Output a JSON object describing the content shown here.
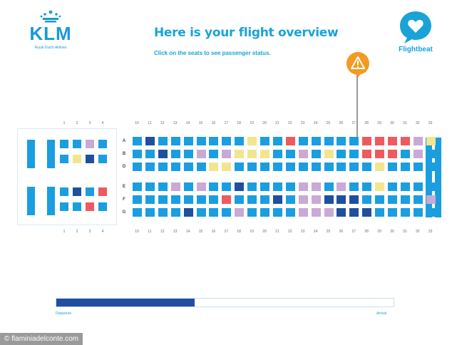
{
  "header": {
    "logo_text": "KLM",
    "logo_tagline": "Royal Dutch Airlines",
    "title": "Here is your flight overview",
    "subtitle": "Click on the seats to see passenger status.",
    "app_name": "Flightbeat"
  },
  "colors": {
    "seat_default": "#1a9ee0",
    "seat_dark": "#1f4fa0",
    "seat_pink": "#c9a9d6",
    "seat_yellow": "#f2e58f",
    "seat_red": "#ef5a5f",
    "alert": "#f29a22",
    "brand": "#1aa3d8"
  },
  "front_cabin": {
    "top_col_numbers": [
      "1",
      "2",
      "3",
      "4"
    ],
    "bottom_col_numbers": [
      "1",
      "2",
      "3",
      "4"
    ],
    "rows": [
      [
        "B",
        "B",
        "P",
        "B"
      ],
      [
        "B",
        "Y",
        "D",
        "B"
      ],
      [
        "B",
        "D",
        "B",
        "R"
      ],
      [
        "B",
        "B",
        "R",
        "B"
      ]
    ]
  },
  "main_cabin": {
    "top_col_numbers": [
      "10",
      "11",
      "12",
      "13",
      "14",
      "15",
      "16",
      "17",
      "18",
      "19",
      "20",
      "21",
      "22",
      "23",
      "24",
      "25",
      "26",
      "27",
      "28",
      "29",
      "30",
      "31",
      "32",
      "33"
    ],
    "bottom_col_numbers": [
      "10",
      "11",
      "12",
      "13",
      "14",
      "15",
      "16",
      "17",
      "18",
      "19",
      "20",
      "21",
      "22",
      "23",
      "24",
      "25",
      "26",
      "27",
      "28",
      "29",
      "30",
      "31",
      "32",
      "33"
    ],
    "row_letters": [
      "A",
      "B",
      "D",
      "E",
      "F",
      "G"
    ],
    "rows": [
      [
        "B",
        "D",
        "B",
        "B",
        "B",
        "B",
        "B",
        "B",
        "B",
        "Y",
        "B",
        "B",
        "R",
        "B",
        "B",
        "B",
        "B",
        "B",
        "R",
        "R",
        "R",
        "R",
        "P",
        "Y"
      ],
      [
        "B",
        "B",
        "D",
        "B",
        "B",
        "P",
        "B",
        "P",
        "Y",
        "Y",
        "Y",
        "B",
        "B",
        "P",
        "B",
        "Y",
        "B",
        "B",
        "R",
        "R",
        "R",
        "B",
        "P",
        "B"
      ],
      [
        "B",
        "B",
        "B",
        "B",
        "B",
        "B",
        "Y",
        "Y",
        "B",
        "B",
        "B",
        "B",
        "B",
        "B",
        "B",
        "B",
        "B",
        "B",
        "B",
        "Y",
        "B",
        "B",
        "B",
        "B"
      ],
      [
        "B",
        "B",
        "B",
        "P",
        "B",
        "P",
        "B",
        "B",
        "D",
        "B",
        "B",
        "B",
        "B",
        "P",
        "P",
        "B",
        "P",
        "B",
        "B",
        "Y",
        "B",
        "B",
        "B",
        "B"
      ],
      [
        "B",
        "B",
        "B",
        "B",
        "B",
        "B",
        "B",
        "R",
        "B",
        "B",
        "B",
        "D",
        "B",
        "P",
        "P",
        "D",
        "D",
        "D",
        "B",
        "B",
        "B",
        "B",
        "B",
        "P"
      ],
      [
        "B",
        "B",
        "B",
        "B",
        "D",
        "B",
        "B",
        "B",
        "P",
        "B",
        "B",
        "B",
        "B",
        "P",
        "P",
        "P",
        "D",
        "D",
        "D",
        "B",
        "B",
        "B",
        "B",
        "B"
      ]
    ]
  },
  "progress": {
    "fraction": 0.41,
    "start_label": "Departure",
    "end_label": "Arrival"
  },
  "credit": "© flaminiadelconte.com"
}
